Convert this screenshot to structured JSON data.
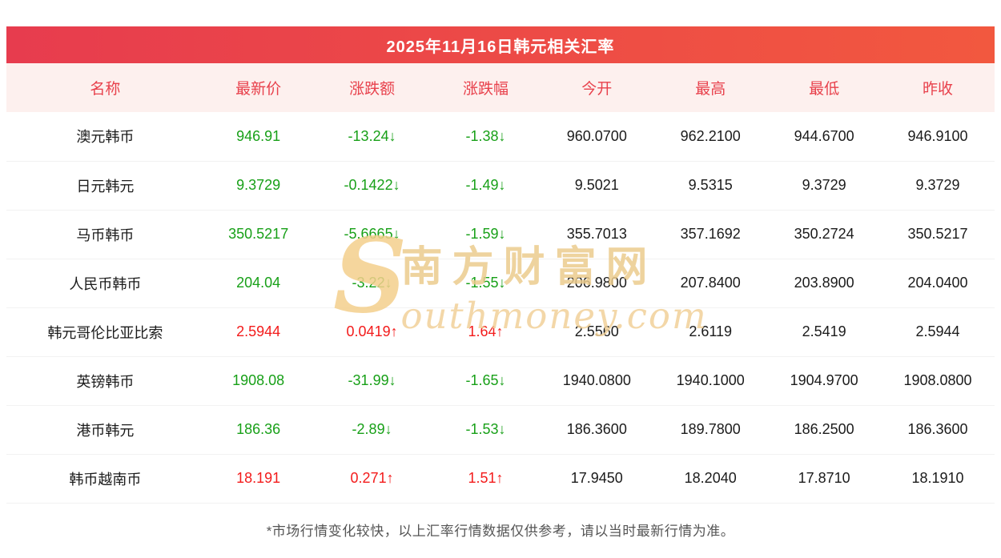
{
  "page": {
    "footnote": "*市场行情变化较快，以上汇率行情数据仅供参考，请以当时最新行情为准。"
  },
  "chart_data": {
    "type": "table",
    "title": "2025年11月16日韩元相关汇率",
    "columns": [
      "名称",
      "最新价",
      "涨跌额",
      "涨跌幅",
      "今开",
      "最高",
      "最低",
      "昨收"
    ],
    "rows": [
      {
        "name": "澳元韩币",
        "latest": "946.91",
        "change": "-13.24↓",
        "change_pct": "-1.38↓",
        "open": "960.0700",
        "high": "962.2100",
        "low": "944.6700",
        "prev_close": "946.9100",
        "trend": "down"
      },
      {
        "name": "日元韩元",
        "latest": "9.3729",
        "change": "-0.1422↓",
        "change_pct": "-1.49↓",
        "open": "9.5021",
        "high": "9.5315",
        "low": "9.3729",
        "prev_close": "9.3729",
        "trend": "down"
      },
      {
        "name": "马币韩币",
        "latest": "350.5217",
        "change": "-5.6665↓",
        "change_pct": "-1.59↓",
        "open": "355.7013",
        "high": "357.1692",
        "low": "350.2724",
        "prev_close": "350.5217",
        "trend": "down"
      },
      {
        "name": "人民币韩币",
        "latest": "204.04",
        "change": "-3.22↓",
        "change_pct": "-1.55↓",
        "open": "206.9800",
        "high": "207.8400",
        "low": "203.8900",
        "prev_close": "204.0400",
        "trend": "down"
      },
      {
        "name": "韩元哥伦比亚比索",
        "latest": "2.5944",
        "change": "0.0419↑",
        "change_pct": "1.64↑",
        "open": "2.5560",
        "high": "2.6119",
        "low": "2.5419",
        "prev_close": "2.5944",
        "trend": "up"
      },
      {
        "name": "英镑韩币",
        "latest": "1908.08",
        "change": "-31.99↓",
        "change_pct": "-1.65↓",
        "open": "1940.0800",
        "high": "1940.1000",
        "low": "1904.9700",
        "prev_close": "1908.0800",
        "trend": "down"
      },
      {
        "name": "港币韩元",
        "latest": "186.36",
        "change": "-2.89↓",
        "change_pct": "-1.53↓",
        "open": "186.3600",
        "high": "189.7800",
        "low": "186.2500",
        "prev_close": "186.3600",
        "trend": "down"
      },
      {
        "name": "韩币越南币",
        "latest": "18.191",
        "change": "0.271↑",
        "change_pct": "1.51↑",
        "open": "17.9450",
        "high": "18.2040",
        "low": "17.8710",
        "prev_close": "18.1910",
        "trend": "up"
      }
    ]
  },
  "watermark": {
    "en_initial": "S",
    "cn": "南方财富网",
    "en_rest": "outhmoney.com"
  },
  "colors": {
    "header_gradient_start": "#e73c4e",
    "header_gradient_end": "#f2583f",
    "header_text": "#ffffff",
    "column_header_bg": "#fdf0ee",
    "column_header_text": "#e8414c",
    "up": "#f31b1b",
    "down": "#18a018",
    "row_border": "#f2f2f2",
    "watermark": "#eccc8e",
    "footnote_text": "#555555"
  }
}
